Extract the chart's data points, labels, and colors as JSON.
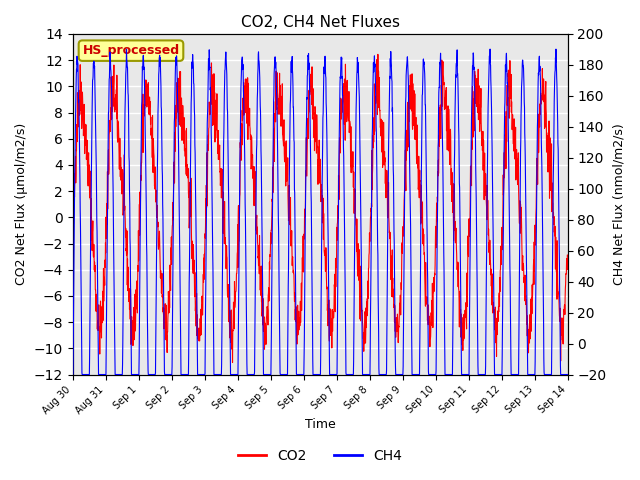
{
  "title": "CO2, CH4 Net Fluxes",
  "xlabel": "Time",
  "ylabel_left": "CO2 Net Flux (μmol/m2/s)",
  "ylabel_right": "CH4 Net Flux (nmol/m2/s)",
  "ylim_left": [
    -12,
    14
  ],
  "ylim_right": [
    -20,
    200
  ],
  "yticks_left": [
    -12,
    -10,
    -8,
    -6,
    -4,
    -2,
    0,
    2,
    4,
    6,
    8,
    10,
    12,
    14
  ],
  "yticks_right": [
    -20,
    0,
    20,
    40,
    60,
    80,
    100,
    120,
    140,
    160,
    180,
    200
  ],
  "annotation_text": "HS_processed",
  "annotation_bbox_facecolor": "#FFFF99",
  "annotation_bbox_edgecolor": "#999900",
  "annotation_text_color": "#CC0000",
  "co2_color": "red",
  "ch4_color": "blue",
  "background_color": "#E8E8E8",
  "grid_color": "white",
  "legend_co2": "CO2",
  "legend_ch4": "CH4",
  "n_points": 2000,
  "fig_width": 6.4,
  "fig_height": 4.8,
  "dpi": 100,
  "tick_labels": [
    "Aug 30",
    "Aug 31",
    "Sep 1",
    "Sep 2",
    "Sep 3",
    "Sep 4",
    "Sep 5",
    "Sep 6",
    "Sep 7",
    "Sep 8",
    "Sep 9",
    "Sep 10",
    "Sep 11",
    "Sep 12",
    "Sep 13",
    "Sep 14"
  ]
}
